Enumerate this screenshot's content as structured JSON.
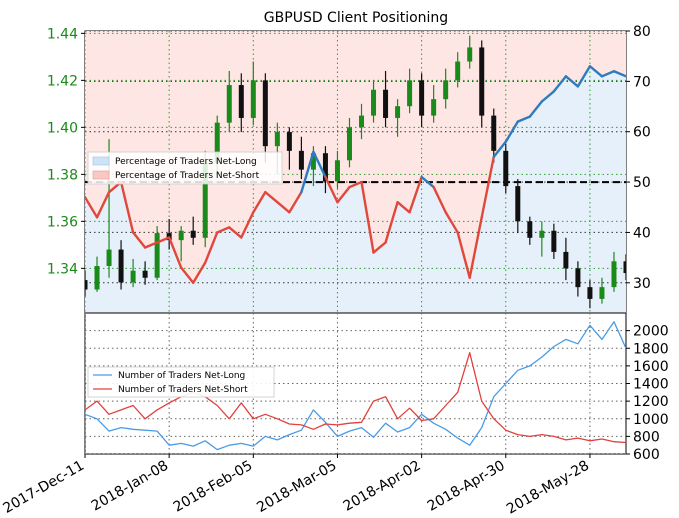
{
  "chart_data": [
    {
      "type": "line",
      "title": "GBPUSD Client Positioning",
      "xlabel": "",
      "ylabel_left": "",
      "ylabel_right": "",
      "x_ticks": [
        "2017-Dec-11",
        "2018-Jan-08",
        "2018-Feb-05",
        "2018-Mar-05",
        "2018-Apr-02",
        "2018-Apr-30",
        "2018-May-28"
      ],
      "x_domain": [
        0,
        180
      ],
      "x_tick_positions": [
        0,
        28,
        56,
        84,
        112,
        140,
        168
      ],
      "ylim_price": [
        1.321,
        1.441
      ],
      "price_ticks": [
        "1.34",
        "1.36",
        "1.38",
        "1.40",
        "1.42",
        "1.44"
      ],
      "price_tick_values": [
        1.34,
        1.36,
        1.38,
        1.4,
        1.42,
        1.44
      ],
      "ylim_percent": [
        24,
        80
      ],
      "percent_ticks": [
        "30",
        "40",
        "50",
        "60",
        "70",
        "80"
      ],
      "percent_tick_values": [
        30,
        40,
        50,
        60,
        70,
        80
      ],
      "reference_line": 50,
      "grid": true,
      "legend_position": "middle-left",
      "legend": [
        "Percentage of Traders Net-Long",
        "Percentage of Traders Net-Short"
      ],
      "series": [
        {
          "name": "Percentage of Traders Net-Long",
          "color": "#2f7bbf",
          "x": [
            0,
            4,
            8,
            12,
            16,
            20,
            24,
            28,
            32,
            36,
            40,
            44,
            48,
            52,
            56,
            60,
            64,
            68,
            72,
            76,
            80,
            84,
            88,
            92,
            96,
            100,
            104,
            108,
            112,
            116,
            120,
            124,
            128,
            132,
            136,
            140,
            144,
            148,
            152,
            156,
            160,
            164,
            168,
            172,
            176,
            180
          ],
          "values": [
            47,
            43,
            48,
            50,
            40,
            37,
            38,
            39,
            33,
            30,
            34,
            40,
            41,
            39,
            44,
            48,
            46,
            44,
            48,
            56,
            51,
            46,
            49,
            50,
            36,
            38,
            46,
            44,
            51,
            49,
            44,
            40,
            31,
            43,
            55,
            58,
            62,
            63,
            66,
            68,
            71,
            69,
            73,
            71,
            72,
            71
          ]
        },
        {
          "name": "Percentage of Traders Net-Short",
          "color": "#e0483c",
          "x": [
            0,
            4,
            8,
            12,
            16,
            20,
            24,
            28,
            32,
            36,
            40,
            44,
            48,
            52,
            56,
            60,
            64,
            68,
            72,
            76,
            80,
            84,
            88,
            92,
            96,
            100,
            104,
            108,
            112,
            116,
            120,
            124,
            128,
            132,
            136,
            140,
            144,
            148,
            152,
            156,
            160,
            164,
            168,
            172,
            176,
            180
          ],
          "values": [
            53,
            57,
            52,
            50,
            60,
            63,
            62,
            61,
            67,
            70,
            66,
            60,
            59,
            61,
            56,
            52,
            54,
            56,
            52,
            44,
            49,
            54,
            51,
            50,
            64,
            62,
            54,
            56,
            49,
            51,
            56,
            60,
            69,
            57,
            45,
            42,
            38,
            37,
            34,
            32,
            29,
            31,
            27,
            29,
            28,
            29
          ]
        }
      ],
      "candles": [
        {
          "x": 0,
          "o": 1.335,
          "h": 1.339,
          "l": 1.328,
          "c": 1.331
        },
        {
          "x": 4,
          "o": 1.331,
          "h": 1.345,
          "l": 1.33,
          "c": 1.341
        },
        {
          "x": 8,
          "o": 1.341,
          "h": 1.395,
          "l": 1.336,
          "c": 1.348
        },
        {
          "x": 12,
          "o": 1.348,
          "h": 1.352,
          "l": 1.331,
          "c": 1.334
        },
        {
          "x": 16,
          "o": 1.334,
          "h": 1.344,
          "l": 1.332,
          "c": 1.339
        },
        {
          "x": 20,
          "o": 1.339,
          "h": 1.343,
          "l": 1.333,
          "c": 1.336
        },
        {
          "x": 24,
          "o": 1.336,
          "h": 1.358,
          "l": 1.335,
          "c": 1.355
        },
        {
          "x": 28,
          "o": 1.355,
          "h": 1.361,
          "l": 1.348,
          "c": 1.352
        },
        {
          "x": 32,
          "o": 1.352,
          "h": 1.358,
          "l": 1.343,
          "c": 1.356
        },
        {
          "x": 36,
          "o": 1.356,
          "h": 1.362,
          "l": 1.35,
          "c": 1.353
        },
        {
          "x": 40,
          "o": 1.353,
          "h": 1.39,
          "l": 1.349,
          "c": 1.385
        },
        {
          "x": 44,
          "o": 1.385,
          "h": 1.405,
          "l": 1.38,
          "c": 1.402
        },
        {
          "x": 48,
          "o": 1.402,
          "h": 1.424,
          "l": 1.398,
          "c": 1.418
        },
        {
          "x": 52,
          "o": 1.418,
          "h": 1.423,
          "l": 1.398,
          "c": 1.404
        },
        {
          "x": 56,
          "o": 1.404,
          "h": 1.428,
          "l": 1.401,
          "c": 1.42
        },
        {
          "x": 60,
          "o": 1.42,
          "h": 1.423,
          "l": 1.385,
          "c": 1.392
        },
        {
          "x": 64,
          "o": 1.392,
          "h": 1.402,
          "l": 1.38,
          "c": 1.398
        },
        {
          "x": 68,
          "o": 1.398,
          "h": 1.4,
          "l": 1.382,
          "c": 1.39
        },
        {
          "x": 72,
          "o": 1.39,
          "h": 1.396,
          "l": 1.378,
          "c": 1.382
        },
        {
          "x": 76,
          "o": 1.382,
          "h": 1.392,
          "l": 1.375,
          "c": 1.389
        },
        {
          "x": 80,
          "o": 1.389,
          "h": 1.392,
          "l": 1.372,
          "c": 1.377
        },
        {
          "x": 84,
          "o": 1.377,
          "h": 1.39,
          "l": 1.374,
          "c": 1.386
        },
        {
          "x": 88,
          "o": 1.386,
          "h": 1.404,
          "l": 1.383,
          "c": 1.4
        },
        {
          "x": 92,
          "o": 1.4,
          "h": 1.41,
          "l": 1.395,
          "c": 1.405
        },
        {
          "x": 96,
          "o": 1.405,
          "h": 1.42,
          "l": 1.402,
          "c": 1.416
        },
        {
          "x": 100,
          "o": 1.416,
          "h": 1.424,
          "l": 1.4,
          "c": 1.404
        },
        {
          "x": 104,
          "o": 1.404,
          "h": 1.412,
          "l": 1.396,
          "c": 1.409
        },
        {
          "x": 108,
          "o": 1.409,
          "h": 1.425,
          "l": 1.406,
          "c": 1.42
        },
        {
          "x": 112,
          "o": 1.42,
          "h": 1.423,
          "l": 1.4,
          "c": 1.405
        },
        {
          "x": 116,
          "o": 1.405,
          "h": 1.418,
          "l": 1.402,
          "c": 1.412
        },
        {
          "x": 120,
          "o": 1.412,
          "h": 1.425,
          "l": 1.408,
          "c": 1.42
        },
        {
          "x": 124,
          "o": 1.42,
          "h": 1.432,
          "l": 1.417,
          "c": 1.428
        },
        {
          "x": 128,
          "o": 1.428,
          "h": 1.439,
          "l": 1.425,
          "c": 1.434
        },
        {
          "x": 132,
          "o": 1.434,
          "h": 1.437,
          "l": 1.4,
          "c": 1.405
        },
        {
          "x": 136,
          "o": 1.405,
          "h": 1.408,
          "l": 1.385,
          "c": 1.39
        },
        {
          "x": 140,
          "o": 1.39,
          "h": 1.393,
          "l": 1.372,
          "c": 1.375
        },
        {
          "x": 144,
          "o": 1.375,
          "h": 1.378,
          "l": 1.355,
          "c": 1.36
        },
        {
          "x": 148,
          "o": 1.36,
          "h": 1.362,
          "l": 1.35,
          "c": 1.353
        },
        {
          "x": 152,
          "o": 1.353,
          "h": 1.36,
          "l": 1.345,
          "c": 1.356
        },
        {
          "x": 156,
          "o": 1.356,
          "h": 1.359,
          "l": 1.344,
          "c": 1.347
        },
        {
          "x": 160,
          "o": 1.347,
          "h": 1.353,
          "l": 1.335,
          "c": 1.34
        },
        {
          "x": 164,
          "o": 1.34,
          "h": 1.343,
          "l": 1.328,
          "c": 1.332
        },
        {
          "x": 168,
          "o": 1.332,
          "h": 1.335,
          "l": 1.323,
          "c": 1.327
        },
        {
          "x": 172,
          "o": 1.327,
          "h": 1.336,
          "l": 1.325,
          "c": 1.332
        },
        {
          "x": 176,
          "o": 1.332,
          "h": 1.347,
          "l": 1.33,
          "c": 1.343
        },
        {
          "x": 180,
          "o": 1.343,
          "h": 1.346,
          "l": 1.335,
          "c": 1.338
        }
      ]
    },
    {
      "type": "line",
      "title": "",
      "xlabel": "",
      "ylabel": "",
      "x_domain": [
        0,
        180
      ],
      "ylim": [
        600,
        2200
      ],
      "y_ticks": [
        "600",
        "800",
        "1000",
        "1200",
        "1400",
        "1600",
        "1800",
        "2000"
      ],
      "y_tick_values": [
        600,
        800,
        1000,
        1200,
        1400,
        1600,
        1800,
        2000
      ],
      "grid": true,
      "legend_position": "middle-left",
      "legend": [
        "Number of Traders Net-Long",
        "Number of Traders Net-Short"
      ],
      "series": [
        {
          "name": "Number of Traders Net-Long",
          "color": "#4a9be8",
          "x": [
            0,
            4,
            8,
            12,
            16,
            20,
            24,
            28,
            32,
            36,
            40,
            44,
            48,
            52,
            56,
            60,
            64,
            68,
            72,
            76,
            80,
            84,
            88,
            92,
            96,
            100,
            104,
            108,
            112,
            116,
            120,
            124,
            128,
            132,
            136,
            140,
            144,
            148,
            152,
            156,
            160,
            164,
            168,
            172,
            176,
            180
          ],
          "values": [
            1050,
            1000,
            860,
            900,
            880,
            870,
            860,
            700,
            720,
            690,
            750,
            650,
            700,
            720,
            690,
            800,
            760,
            820,
            870,
            1100,
            960,
            800,
            860,
            900,
            790,
            950,
            850,
            900,
            1050,
            950,
            880,
            780,
            700,
            900,
            1250,
            1400,
            1550,
            1600,
            1700,
            1820,
            1900,
            1850,
            2060,
            1900,
            2100,
            1800
          ]
        },
        {
          "name": "Number of Traders Net-Short",
          "color": "#e2403c",
          "x": [
            0,
            4,
            8,
            12,
            16,
            20,
            24,
            28,
            32,
            36,
            40,
            44,
            48,
            52,
            56,
            60,
            64,
            68,
            72,
            76,
            80,
            84,
            88,
            92,
            96,
            100,
            104,
            108,
            112,
            116,
            120,
            124,
            128,
            132,
            136,
            140,
            144,
            148,
            152,
            156,
            160,
            164,
            168,
            172,
            176,
            180
          ],
          "values": [
            1100,
            1200,
            1050,
            1100,
            1150,
            1000,
            1100,
            1180,
            1250,
            1300,
            1250,
            1150,
            1000,
            1180,
            1000,
            1050,
            1000,
            940,
            930,
            880,
            940,
            930,
            950,
            960,
            1200,
            1250,
            1000,
            1120,
            980,
            1000,
            1150,
            1300,
            1750,
            1200,
            1000,
            870,
            820,
            800,
            820,
            800,
            760,
            780,
            750,
            770,
            740,
            730
          ]
        }
      ]
    }
  ]
}
